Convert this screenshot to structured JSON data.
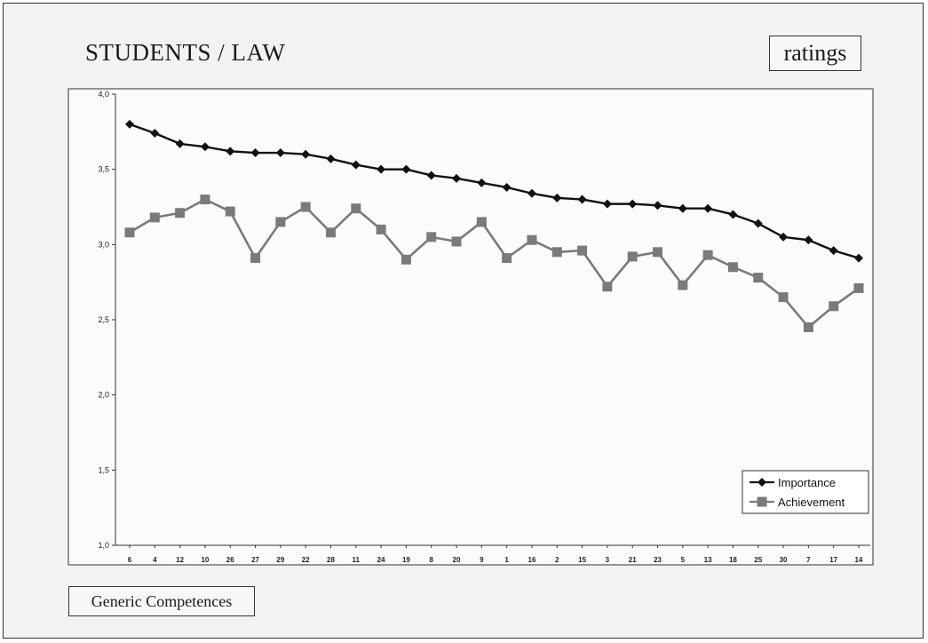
{
  "chart_data": {
    "type": "line",
    "title": "STUDENTS / LAW",
    "badge": "ratings",
    "xlabel": "Generic Competences",
    "ylabel": "",
    "ylim": [
      1.0,
      4.0
    ],
    "yticks": [
      "1,0",
      "1,5",
      "2,0",
      "2,5",
      "3,0",
      "3,5",
      "4,0"
    ],
    "ytick_values": [
      1.0,
      1.5,
      2.0,
      2.5,
      3.0,
      3.5,
      4.0
    ],
    "categories": [
      "6",
      "4",
      "12",
      "10",
      "26",
      "27",
      "29",
      "22",
      "28",
      "11",
      "24",
      "19",
      "8",
      "20",
      "9",
      "1",
      "16",
      "2",
      "15",
      "3",
      "21",
      "23",
      "5",
      "13",
      "18",
      "25",
      "30",
      "7",
      "17",
      "14"
    ],
    "grid": false,
    "legend_position": "bottom-right",
    "series": [
      {
        "name": "Importance",
        "color": "#111111",
        "marker": "diamond",
        "values": [
          3.8,
          3.74,
          3.67,
          3.65,
          3.62,
          3.61,
          3.61,
          3.6,
          3.57,
          3.53,
          3.5,
          3.5,
          3.46,
          3.44,
          3.41,
          3.38,
          3.34,
          3.31,
          3.3,
          3.27,
          3.27,
          3.26,
          3.24,
          3.24,
          3.2,
          3.14,
          3.05,
          3.03,
          2.96,
          2.91
        ]
      },
      {
        "name": "Achievement",
        "color": "#7a7a7a",
        "marker": "square",
        "values": [
          3.08,
          3.18,
          3.21,
          3.3,
          3.22,
          2.91,
          3.15,
          3.25,
          3.08,
          3.24,
          3.1,
          2.9,
          3.05,
          3.02,
          3.15,
          2.91,
          3.03,
          2.95,
          2.96,
          2.72,
          2.92,
          2.95,
          2.73,
          2.93,
          2.85,
          2.78,
          2.65,
          2.45,
          2.59,
          2.71
        ]
      }
    ]
  }
}
